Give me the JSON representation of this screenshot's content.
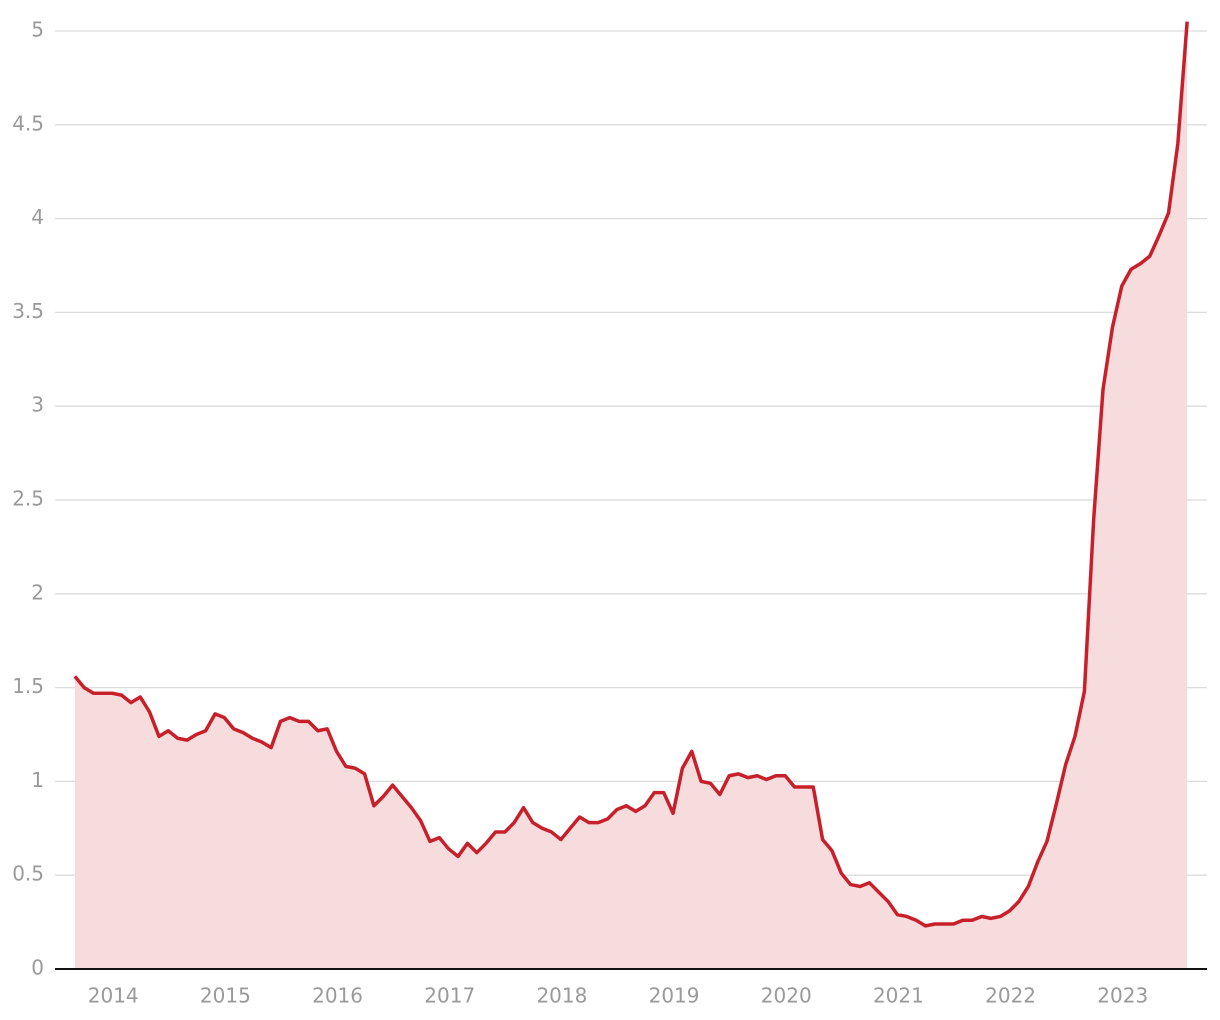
{
  "chart_data": {
    "type": "area",
    "x": [
      2013.667,
      2013.75,
      2013.833,
      2013.917,
      2014,
      2014.083,
      2014.167,
      2014.25,
      2014.333,
      2014.417,
      2014.5,
      2014.583,
      2014.667,
      2014.75,
      2014.833,
      2014.917,
      2015,
      2015.083,
      2015.167,
      2015.25,
      2015.333,
      2015.417,
      2015.5,
      2015.583,
      2015.667,
      2015.75,
      2015.833,
      2015.917,
      2016,
      2016.083,
      2016.167,
      2016.25,
      2016.333,
      2016.417,
      2016.5,
      2016.583,
      2016.667,
      2016.75,
      2016.833,
      2016.917,
      2017,
      2017.083,
      2017.167,
      2017.25,
      2017.333,
      2017.417,
      2017.5,
      2017.583,
      2017.667,
      2017.75,
      2017.833,
      2017.917,
      2018,
      2018.083,
      2018.167,
      2018.25,
      2018.333,
      2018.417,
      2018.5,
      2018.583,
      2018.667,
      2018.75,
      2018.833,
      2018.917,
      2019,
      2019.083,
      2019.167,
      2019.25,
      2019.333,
      2019.417,
      2019.5,
      2019.583,
      2019.667,
      2019.75,
      2019.833,
      2019.917,
      2020,
      2020.083,
      2020.167,
      2020.25,
      2020.333,
      2020.417,
      2020.5,
      2020.583,
      2020.667,
      2020.75,
      2020.833,
      2020.917,
      2021,
      2021.083,
      2021.167,
      2021.25,
      2021.333,
      2021.417,
      2021.5,
      2021.583,
      2021.667,
      2021.75,
      2021.833,
      2021.917,
      2022,
      2022.083,
      2022.167,
      2022.25,
      2022.333,
      2022.417,
      2022.5,
      2022.583,
      2022.667,
      2022.75,
      2022.833,
      2022.917,
      2023,
      2023.083,
      2023.167,
      2023.25,
      2023.333,
      2023.417,
      2023.5,
      2023.583
    ],
    "series": [
      {
        "color": "#c8202a",
        "fill": "#f7dcdd",
        "values": [
          1.56,
          1.5,
          1.47,
          1.47,
          1.47,
          1.46,
          1.42,
          1.45,
          1.37,
          1.24,
          1.27,
          1.23,
          1.22,
          1.25,
          1.27,
          1.36,
          1.34,
          1.28,
          1.26,
          1.23,
          1.21,
          1.18,
          1.32,
          1.34,
          1.32,
          1.32,
          1.27,
          1.28,
          1.16,
          1.08,
          1.07,
          1.04,
          0.87,
          0.92,
          0.98,
          0.92,
          0.86,
          0.79,
          0.68,
          0.7,
          0.64,
          0.6,
          0.67,
          0.62,
          0.67,
          0.73,
          0.73,
          0.78,
          0.86,
          0.78,
          0.75,
          0.73,
          0.69,
          0.75,
          0.81,
          0.78,
          0.78,
          0.8,
          0.85,
          0.87,
          0.84,
          0.87,
          0.94,
          0.94,
          0.83,
          1.07,
          1.16,
          1.0,
          0.99,
          0.93,
          1.03,
          1.04,
          1.02,
          1.03,
          1.01,
          1.03,
          1.03,
          0.97,
          0.97,
          0.97,
          0.69,
          0.63,
          0.51,
          0.45,
          0.44,
          0.46,
          0.41,
          0.36,
          0.29,
          0.28,
          0.26,
          0.23,
          0.24,
          0.24,
          0.24,
          0.26,
          0.26,
          0.28,
          0.27,
          0.28,
          0.31,
          0.36,
          0.44,
          0.57,
          0.68,
          0.88,
          1.09,
          1.24,
          1.48,
          2.4,
          3.09,
          3.42,
          3.64,
          3.73,
          3.76,
          3.8,
          3.91,
          4.03,
          4.4,
          5.05
        ]
      }
    ],
    "xlim": [
      2013.49,
      2023.76
    ],
    "xticks": [
      2014,
      2015,
      2016,
      2017,
      2018,
      2019,
      2020,
      2021,
      2022,
      2023
    ],
    "ylim": [
      0,
      5
    ],
    "yticks": [
      0,
      0.5,
      1,
      1.5,
      2,
      2.5,
      3,
      3.5,
      4,
      4.5,
      5
    ],
    "grid": true
  }
}
